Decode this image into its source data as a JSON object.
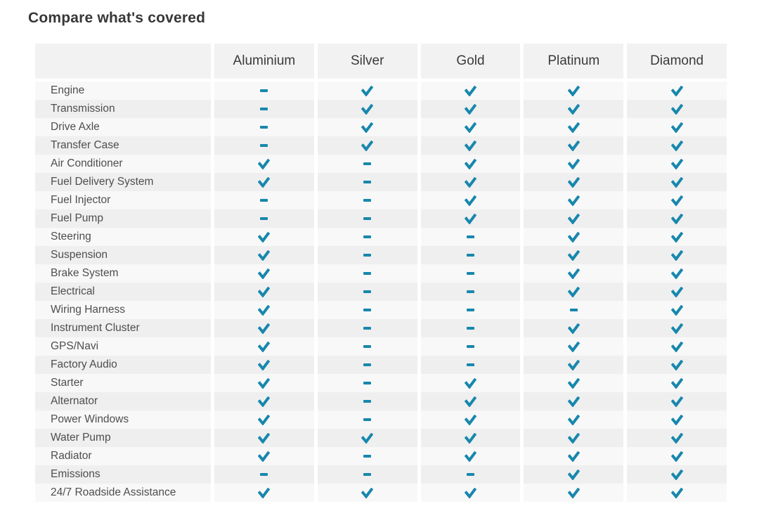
{
  "title": "Compare what's covered",
  "colors": {
    "mark_teal": "#1787ad",
    "header_bg": "#f2f2f2",
    "row_light": "#f8f8f8",
    "row_dark": "#efefef",
    "title_text": "#373737",
    "label_text": "#4e4e4e"
  },
  "chart_data": {
    "type": "table",
    "title": "Compare what's covered",
    "columns": [
      "",
      "Aluminium",
      "Silver",
      "Gold",
      "Platinum",
      "Diamond"
    ],
    "value_legend": {
      "check": "covered checkmark",
      "dash": "not covered dash"
    },
    "rows": [
      {
        "label": "Engine",
        "values": [
          "dash",
          "check",
          "check",
          "check",
          "check"
        ]
      },
      {
        "label": "Transmission",
        "values": [
          "dash",
          "check",
          "check",
          "check",
          "check"
        ]
      },
      {
        "label": "Drive Axle",
        "values": [
          "dash",
          "check",
          "check",
          "check",
          "check"
        ]
      },
      {
        "label": "Transfer Case",
        "values": [
          "dash",
          "check",
          "check",
          "check",
          "check"
        ]
      },
      {
        "label": "Air Conditioner",
        "values": [
          "check",
          "dash",
          "check",
          "check",
          "check"
        ]
      },
      {
        "label": "Fuel Delivery System",
        "values": [
          "check",
          "dash",
          "check",
          "check",
          "check"
        ]
      },
      {
        "label": "Fuel Injector",
        "values": [
          "dash",
          "dash",
          "check",
          "check",
          "check"
        ]
      },
      {
        "label": "Fuel Pump",
        "values": [
          "dash",
          "dash",
          "check",
          "check",
          "check"
        ]
      },
      {
        "label": "Steering",
        "values": [
          "check",
          "dash",
          "dash",
          "check",
          "check"
        ]
      },
      {
        "label": "Suspension",
        "values": [
          "check",
          "dash",
          "dash",
          "check",
          "check"
        ]
      },
      {
        "label": "Brake System",
        "values": [
          "check",
          "dash",
          "dash",
          "check",
          "check"
        ]
      },
      {
        "label": "Electrical",
        "values": [
          "check",
          "dash",
          "dash",
          "check",
          "check"
        ]
      },
      {
        "label": "Wiring Harness",
        "values": [
          "check",
          "dash",
          "dash",
          "dash",
          "check"
        ]
      },
      {
        "label": "Instrument Cluster",
        "values": [
          "check",
          "dash",
          "dash",
          "check",
          "check"
        ]
      },
      {
        "label": "GPS/Navi",
        "values": [
          "check",
          "dash",
          "dash",
          "check",
          "check"
        ]
      },
      {
        "label": "Factory Audio",
        "values": [
          "check",
          "dash",
          "dash",
          "check",
          "check"
        ]
      },
      {
        "label": "Starter",
        "values": [
          "check",
          "dash",
          "check",
          "check",
          "check"
        ]
      },
      {
        "label": "Alternator",
        "values": [
          "check",
          "dash",
          "check",
          "check",
          "check"
        ]
      },
      {
        "label": "Power Windows",
        "values": [
          "check",
          "dash",
          "check",
          "check",
          "check"
        ]
      },
      {
        "label": "Water Pump",
        "values": [
          "check",
          "check",
          "check",
          "check",
          "check"
        ]
      },
      {
        "label": "Radiator",
        "values": [
          "check",
          "dash",
          "check",
          "check",
          "check"
        ]
      },
      {
        "label": "Emissions",
        "values": [
          "dash",
          "dash",
          "dash",
          "check",
          "check"
        ]
      },
      {
        "label": "24/7 Roadside Assistance",
        "values": [
          "check",
          "check",
          "check",
          "check",
          "check"
        ]
      }
    ]
  }
}
